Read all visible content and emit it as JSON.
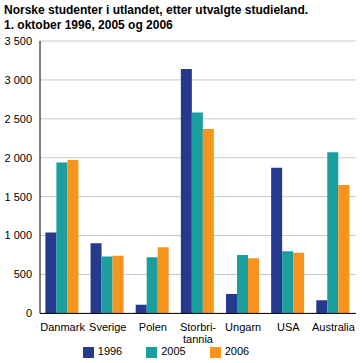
{
  "chart_data": {
    "type": "bar",
    "title": "Norske studenter i utlandet, etter utvalgte studieland.",
    "subtitle": "1. oktober 1996, 2005 og 2006",
    "categories": [
      "Danmark",
      "Sverige",
      "Polen",
      "Storbri-\ntannia",
      "Ungarn",
      "USA",
      "Australia"
    ],
    "series": [
      {
        "name": "1996",
        "color": "#253a8c",
        "values": [
          1040,
          900,
          110,
          3140,
          250,
          1870,
          170
        ]
      },
      {
        "name": "2005",
        "color": "#1a9e9e",
        "values": [
          1940,
          730,
          720,
          2580,
          750,
          800,
          2070
        ]
      },
      {
        "name": "2006",
        "color": "#f7941d",
        "values": [
          1970,
          740,
          850,
          2370,
          710,
          780,
          1650
        ]
      }
    ],
    "ylim": [
      0,
      3500
    ],
    "yticks": [
      0,
      500,
      {
        "value": 1000,
        "label": "1 000"
      },
      {
        "value": 1500,
        "label": "1 500"
      },
      {
        "value": 2000,
        "label": "2 000"
      },
      {
        "value": 2500,
        "label": "2 500"
      },
      {
        "value": 3000,
        "label": "3 000"
      },
      {
        "value": 3500,
        "label": "3 500"
      }
    ],
    "grid": true,
    "legend": "bottom"
  }
}
